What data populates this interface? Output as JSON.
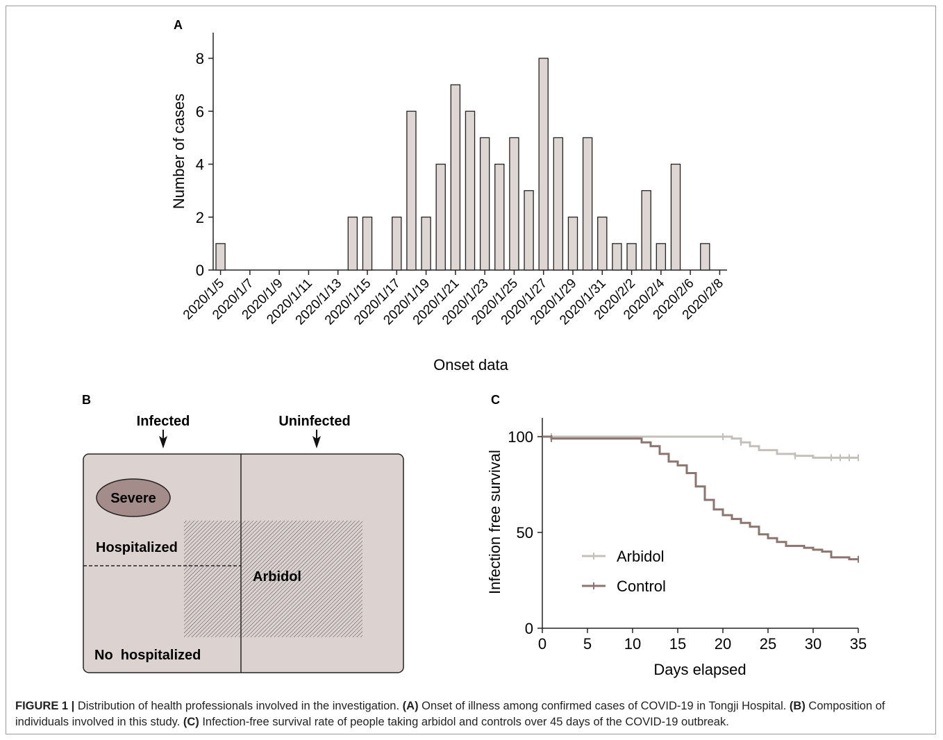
{
  "figure": {
    "caption_label": "FIGURE 1 |",
    "caption_parts": [
      {
        "bold": false,
        "text": " Distribution of health professionals involved in the investigation. "
      },
      {
        "bold": true,
        "text": "(A)"
      },
      {
        "bold": false,
        "text": " Onset of illness among confirmed cases of COVID-19 in Tongji Hospital. "
      },
      {
        "bold": true,
        "text": "(B)"
      },
      {
        "bold": false,
        "text": " Composition of individuals involved in this study. "
      },
      {
        "bold": true,
        "text": "(C)"
      },
      {
        "bold": false,
        "text": " Infection-free survival rate of people taking arbidol and controls over 45 days of the COVID-19 outbreak."
      }
    ]
  },
  "panel_a": {
    "label": "A",
    "chart_data": {
      "type": "bar",
      "xlabel": "Onset data",
      "ylabel": "Number of cases",
      "ylim": [
        0,
        9
      ],
      "yticks": [
        0,
        2,
        4,
        6,
        8
      ],
      "categories": [
        "2020/1/5",
        "2020/1/6",
        "2020/1/7",
        "2020/1/8",
        "2020/1/9",
        "2020/1/10",
        "2020/1/11",
        "2020/1/12",
        "2020/1/13",
        "2020/1/14",
        "2020/1/15",
        "2020/1/16",
        "2020/1/17",
        "2020/1/18",
        "2020/1/19",
        "2020/1/20",
        "2020/1/21",
        "2020/1/22",
        "2020/1/23",
        "2020/1/24",
        "2020/1/25",
        "2020/1/26",
        "2020/1/27",
        "2020/1/28",
        "2020/1/29",
        "2020/1/30",
        "2020/1/31",
        "2020/2/1",
        "2020/2/2",
        "2020/2/3",
        "2020/2/4",
        "2020/2/5",
        "2020/2/6",
        "2020/2/7",
        "2020/2/8"
      ],
      "values": [
        1,
        0,
        0,
        0,
        0,
        0,
        0,
        0,
        0,
        2,
        2,
        0,
        2,
        6,
        2,
        4,
        7,
        6,
        5,
        4,
        5,
        3,
        8,
        5,
        2,
        5,
        2,
        1,
        1,
        3,
        1,
        4,
        0,
        1,
        0
      ],
      "tick_labels": [
        "2020/1/5",
        "2020/1/7",
        "2020/1/9",
        "2020/1/11",
        "2020/1/13",
        "2020/1/15",
        "2020/1/17",
        "2020/1/19",
        "2020/1/21",
        "2020/1/23",
        "2020/1/25",
        "2020/1/27",
        "2020/1/29",
        "2020/1/31",
        "2020/2/2",
        "2020/2/4",
        "2020/2/6",
        "2020/2/8"
      ],
      "colors": {
        "bar_fill": "#ddd6d3",
        "bar_stroke": "#222222"
      }
    }
  },
  "panel_b": {
    "label": "B",
    "infected": "Infected",
    "uninfected": "Uninfected",
    "severe": "Severe",
    "hospitalized": "Hospitalized",
    "no_hospitalized": "No  hospitalized",
    "arbidol": "Arbidol",
    "colors": {
      "box": "#dcd3d1",
      "severe": "#a38c89"
    }
  },
  "panel_c": {
    "label": "C",
    "chart_data": {
      "type": "line",
      "xlabel": "Days elapsed",
      "ylabel": "Infection free survival",
      "xlim": [
        0,
        35
      ],
      "ylim": [
        0,
        100
      ],
      "xticks": [
        0,
        5,
        10,
        15,
        20,
        25,
        30,
        35
      ],
      "yticks": [
        0,
        50,
        100
      ],
      "legend_placement": "bottom-left",
      "series": [
        {
          "name": "Arbidol",
          "color": "#c5bfbb",
          "steps": [
            [
              0,
              100
            ],
            [
              20,
              100
            ],
            [
              21,
              99
            ],
            [
              22,
              97
            ],
            [
              23,
              95
            ],
            [
              24,
              93
            ],
            [
              26,
              91
            ],
            [
              28,
              90
            ],
            [
              30,
              89
            ],
            [
              35,
              89
            ]
          ],
          "censor": [
            1,
            20,
            22,
            28,
            32,
            33,
            34,
            35
          ]
        },
        {
          "name": "Control",
          "color": "#8c7470",
          "steps": [
            [
              0,
              100
            ],
            [
              1,
              99
            ],
            [
              10,
              99
            ],
            [
              11,
              97
            ],
            [
              12,
              95
            ],
            [
              13,
              91
            ],
            [
              14,
              87
            ],
            [
              15,
              85
            ],
            [
              16,
              81
            ],
            [
              17,
              74
            ],
            [
              18,
              67
            ],
            [
              19,
              62
            ],
            [
              20,
              59
            ],
            [
              21,
              57
            ],
            [
              22,
              55
            ],
            [
              23,
              53
            ],
            [
              24,
              49
            ],
            [
              25,
              47
            ],
            [
              26,
              45
            ],
            [
              27,
              43
            ],
            [
              29,
              42
            ],
            [
              30,
              41
            ],
            [
              31,
              40
            ],
            [
              32,
              37
            ],
            [
              34,
              36
            ],
            [
              35,
              36
            ]
          ],
          "censor": [
            1,
            35
          ]
        }
      ]
    }
  }
}
